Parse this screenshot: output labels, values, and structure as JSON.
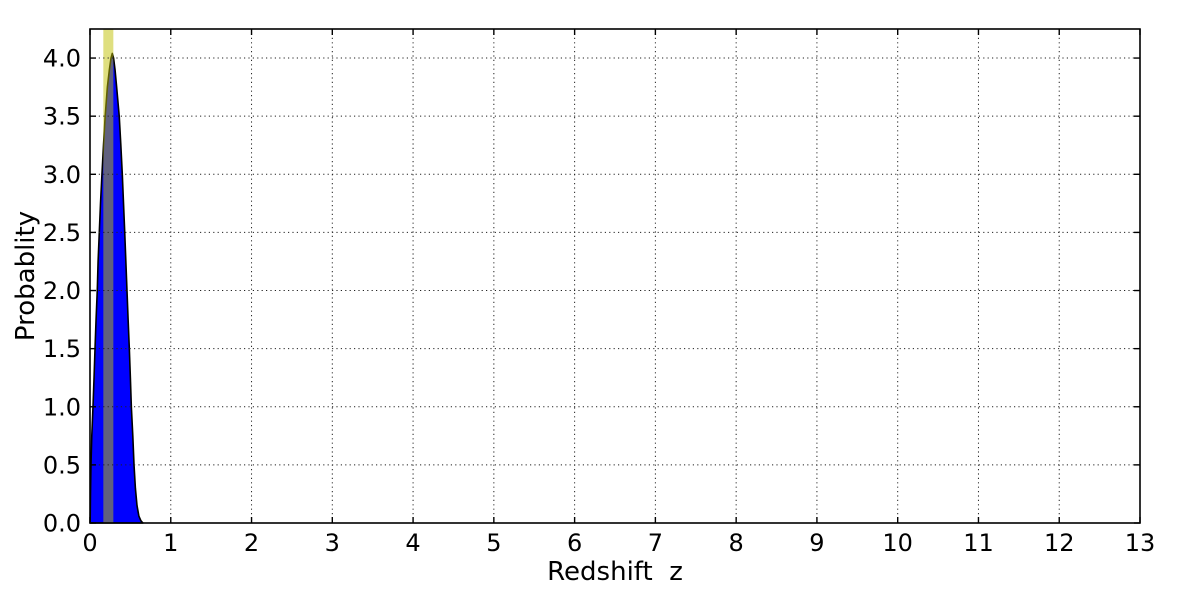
{
  "figure": {
    "background": "#ffffff",
    "frame_color": "#000000"
  },
  "chart_data": {
    "type": "area",
    "title": "",
    "xlabel": "Redshift  z",
    "ylabel": "Probablity",
    "xlim": [
      0,
      13
    ],
    "ylim": [
      0,
      4.25
    ],
    "xticks": [
      0,
      1,
      2,
      3,
      4,
      5,
      6,
      7,
      8,
      9,
      10,
      11,
      12,
      13
    ],
    "xtick_labels": [
      "0",
      "1",
      "2",
      "3",
      "4",
      "5",
      "6",
      "7",
      "8",
      "9",
      "10",
      "11",
      "12",
      "13"
    ],
    "yticks": [
      0.0,
      0.5,
      1.0,
      1.5,
      2.0,
      2.5,
      3.0,
      3.5,
      4.0
    ],
    "ytick_labels": [
      "0.0",
      "0.5",
      "1.0",
      "1.5",
      "2.0",
      "2.5",
      "3.0",
      "3.5",
      "4.0"
    ],
    "grid": {
      "on": true,
      "style": "dotted",
      "color": "#222222"
    },
    "legend": {
      "on": false
    },
    "series": [
      {
        "name": "redshift-probability-pdf",
        "type": "area",
        "fill_color": "#0000ff",
        "edge_color": "#000000",
        "peak": {
          "z": 0.276,
          "probability": 4.04
        },
        "points": [
          [
            0.002,
            0.0
          ],
          [
            0.006,
            0.25
          ],
          [
            0.012,
            0.5
          ],
          [
            0.022,
            0.75
          ],
          [
            0.037,
            1.0
          ],
          [
            0.05,
            1.25
          ],
          [
            0.062,
            1.5
          ],
          [
            0.075,
            1.75
          ],
          [
            0.09,
            2.0
          ],
          [
            0.1,
            2.25
          ],
          [
            0.115,
            2.5
          ],
          [
            0.13,
            2.75
          ],
          [
            0.148,
            3.0
          ],
          [
            0.167,
            3.25
          ],
          [
            0.188,
            3.5
          ],
          [
            0.215,
            3.75
          ],
          [
            0.24,
            3.9
          ],
          [
            0.26,
            4.0
          ],
          [
            0.276,
            4.04
          ],
          [
            0.292,
            4.0
          ],
          [
            0.31,
            3.9
          ],
          [
            0.33,
            3.75
          ],
          [
            0.362,
            3.5
          ],
          [
            0.382,
            3.25
          ],
          [
            0.4,
            3.0
          ],
          [
            0.415,
            2.75
          ],
          [
            0.43,
            2.5
          ],
          [
            0.444,
            2.25
          ],
          [
            0.458,
            2.0
          ],
          [
            0.472,
            1.75
          ],
          [
            0.487,
            1.5
          ],
          [
            0.5,
            1.25
          ],
          [
            0.512,
            1.0
          ],
          [
            0.53,
            0.75
          ],
          [
            0.545,
            0.5
          ],
          [
            0.562,
            0.3
          ],
          [
            0.582,
            0.15
          ],
          [
            0.605,
            0.06
          ],
          [
            0.63,
            0.02
          ],
          [
            0.655,
            0.0
          ]
        ]
      }
    ],
    "annotations": [
      {
        "name": "highlight-vspan",
        "type": "vspan",
        "x0": 0.165,
        "x1": 0.289,
        "color": "#bfbf00",
        "opacity": 0.5
      }
    ]
  }
}
